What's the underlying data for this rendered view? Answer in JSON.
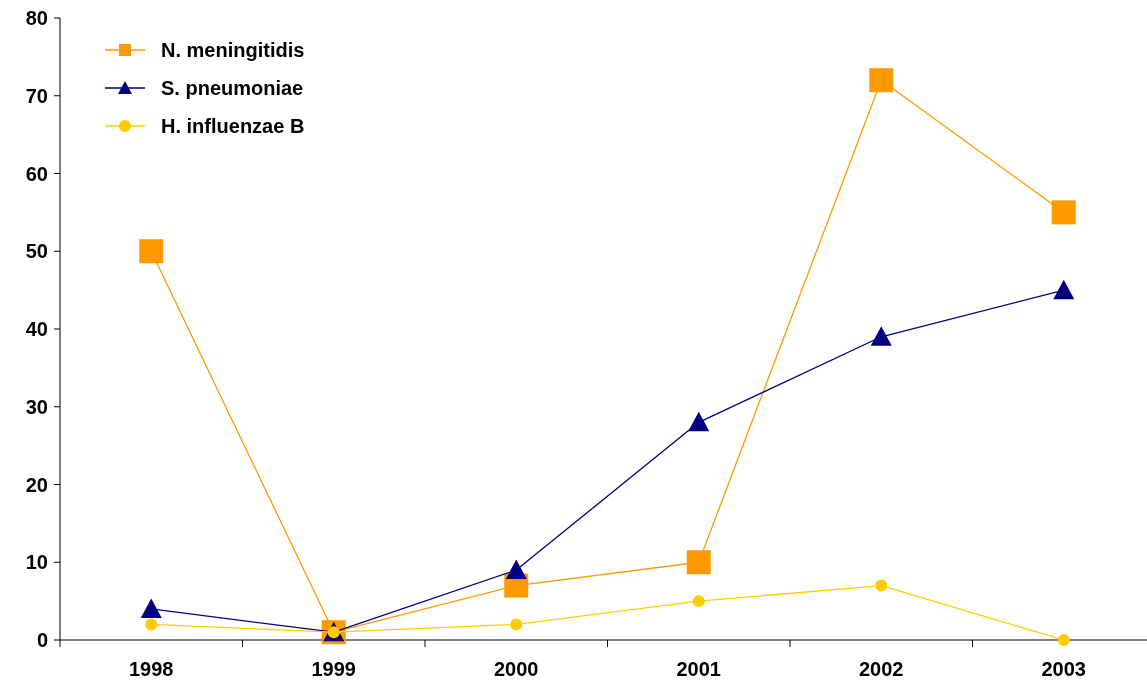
{
  "chart_data": {
    "type": "line",
    "categories": [
      "1998",
      "1999",
      "2000",
      "2001",
      "2002",
      "2003"
    ],
    "series": [
      {
        "name": "N. meningitidis",
        "color": "#ff9900",
        "marker": "square",
        "values": [
          50,
          1,
          7,
          10,
          72,
          55
        ]
      },
      {
        "name": "S. pneumoniae",
        "color": "#000080",
        "marker": "triangle",
        "values": [
          4,
          1,
          9,
          28,
          39,
          45
        ]
      },
      {
        "name": "H. influenzae B",
        "color": "#ffcc00",
        "marker": "circle",
        "values": [
          2,
          1,
          2,
          5,
          7,
          0
        ]
      }
    ],
    "ylim": [
      0,
      80
    ],
    "yticks": [
      0,
      10,
      20,
      30,
      40,
      50,
      60,
      70,
      80
    ],
    "grid": false,
    "legend": "top left",
    "line_style": "solid"
  }
}
